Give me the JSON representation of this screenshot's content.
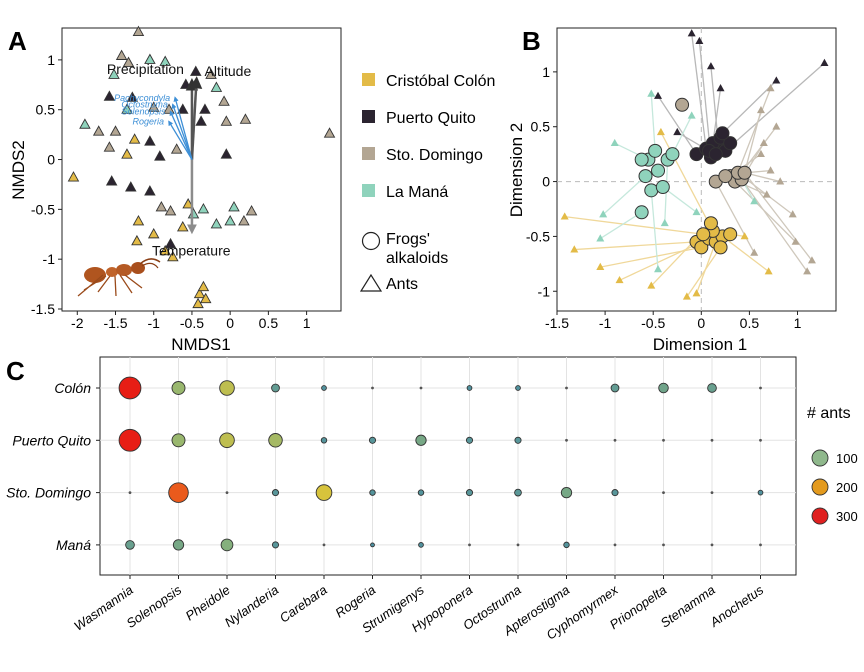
{
  "colors": {
    "colon": "#e3bb47",
    "quito": "#2b2430",
    "domingo": "#b3a693",
    "mana": "#8fd3bc",
    "arrow_grey": "#8c8c8c",
    "arrow_blue": "#3d8fd6"
  },
  "panels": {
    "a": "A",
    "b": "B",
    "c": "C"
  },
  "legend_ab": {
    "items": [
      {
        "label": "Cristóbal Colón",
        "color": "colon"
      },
      {
        "label": "Puerto Quito",
        "color": "quito"
      },
      {
        "label": "Sto. Domingo",
        "color": "domingo"
      },
      {
        "label": "La Maná",
        "color": "mana"
      }
    ],
    "frogs": [
      "Frogs'",
      "alkaloids"
    ],
    "ants": "Ants"
  },
  "legend_c": {
    "title": "# ants",
    "items": [
      {
        "label": "100",
        "value": 100
      },
      {
        "label": "200",
        "value": 200
      },
      {
        "label": "300",
        "value": 300
      }
    ]
  },
  "chart_data": [
    {
      "type": "scatter",
      "panel": "A",
      "xlabel": "NMDS1",
      "ylabel": "NMDS2",
      "xlim": [
        -2.2,
        1.45
      ],
      "ylim": [
        -1.52,
        1.32
      ],
      "xticks": [
        {
          "v": -2,
          "label": "-2"
        },
        {
          "v": -1.5,
          "label": "-1.5"
        },
        {
          "v": -1,
          "label": "-1"
        },
        {
          "v": -0.5,
          "label": "-0.5"
        },
        {
          "v": 0,
          "label": "0"
        },
        {
          "v": 0.5,
          "label": "0.5"
        },
        {
          "v": 1,
          "label": "1"
        }
      ],
      "yticks": [
        {
          "v": 1,
          "label": "1"
        },
        {
          "v": 0.5,
          "label": "0.5"
        },
        {
          "v": 0,
          "label": "0"
        },
        {
          "v": -0.5,
          "label": "-0.5"
        },
        {
          "v": -1,
          "label": "-1"
        },
        {
          "v": -1.5,
          "label": "-1.5"
        }
      ],
      "vectors": [
        {
          "label": "Precipitation",
          "x": -0.5,
          "y": 0.78,
          "color": "arrow_grey",
          "label_pos": "left"
        },
        {
          "label": "Altitude",
          "x": -0.44,
          "y": 0.8,
          "color": "arrow_grey",
          "label_pos": "right"
        },
        {
          "label": "Temperature",
          "x": -0.5,
          "y": -0.72,
          "color": "arrow_grey",
          "label_pos": "right"
        },
        {
          "label": "Pachycondyla",
          "x": -0.72,
          "y": 0.62,
          "color": "arrow_blue",
          "label_pos": "left"
        },
        {
          "label": "Octostruma",
          "x": -0.75,
          "y": 0.55,
          "color": "arrow_blue",
          "label_pos": "left"
        },
        {
          "label": "Solenopsis",
          "x": -0.78,
          "y": 0.48,
          "color": "arrow_blue",
          "label_pos": "left"
        },
        {
          "label": "Rogeria",
          "x": -0.8,
          "y": 0.38,
          "color": "arrow_blue",
          "label_pos": "left"
        }
      ],
      "vector_origin": {
        "x": -0.5,
        "y": 0
      },
      "points": [
        {
          "x": -1.2,
          "y": 1.28,
          "site": "domingo"
        },
        {
          "x": -1.42,
          "y": 1.04,
          "site": "domingo"
        },
        {
          "x": -1.33,
          "y": 0.97,
          "site": "domingo"
        },
        {
          "x": -1.52,
          "y": 0.85,
          "site": "mana"
        },
        {
          "x": -1.05,
          "y": 1.0,
          "site": "mana"
        },
        {
          "x": -0.85,
          "y": 0.98,
          "site": "mana"
        },
        {
          "x": -1.58,
          "y": 0.63,
          "site": "quito"
        },
        {
          "x": -1.28,
          "y": 0.62,
          "site": "quito"
        },
        {
          "x": -1.35,
          "y": 0.5,
          "site": "mana"
        },
        {
          "x": -1.0,
          "y": 0.52,
          "site": "domingo"
        },
        {
          "x": -0.8,
          "y": 0.5,
          "site": "domingo"
        },
        {
          "x": -0.62,
          "y": 0.5,
          "site": "quito"
        },
        {
          "x": -0.58,
          "y": 0.75,
          "site": "quito"
        },
        {
          "x": -0.45,
          "y": 0.88,
          "site": "quito"
        },
        {
          "x": -0.33,
          "y": 0.5,
          "site": "quito"
        },
        {
          "x": -0.18,
          "y": 0.72,
          "site": "mana"
        },
        {
          "x": -0.08,
          "y": 0.58,
          "site": "domingo"
        },
        {
          "x": -0.25,
          "y": 0.85,
          "site": "domingo"
        },
        {
          "x": -0.38,
          "y": 0.38,
          "site": "quito"
        },
        {
          "x": -0.05,
          "y": 0.38,
          "site": "domingo"
        },
        {
          "x": 0.2,
          "y": 0.4,
          "site": "domingo"
        },
        {
          "x": -1.9,
          "y": 0.35,
          "site": "mana"
        },
        {
          "x": -1.72,
          "y": 0.28,
          "site": "domingo"
        },
        {
          "x": -1.5,
          "y": 0.28,
          "site": "domingo"
        },
        {
          "x": -1.25,
          "y": 0.2,
          "site": "colon"
        },
        {
          "x": -1.35,
          "y": 0.05,
          "site": "colon"
        },
        {
          "x": -1.58,
          "y": 0.12,
          "site": "domingo"
        },
        {
          "x": -1.05,
          "y": 0.18,
          "site": "quito"
        },
        {
          "x": -0.92,
          "y": 0.03,
          "site": "quito"
        },
        {
          "x": -0.7,
          "y": 0.1,
          "site": "domingo"
        },
        {
          "x": -0.05,
          "y": 0.05,
          "site": "quito"
        },
        {
          "x": -2.05,
          "y": -0.18,
          "site": "colon"
        },
        {
          "x": -1.55,
          "y": -0.22,
          "site": "quito"
        },
        {
          "x": -1.3,
          "y": -0.28,
          "site": "quito"
        },
        {
          "x": -1.05,
          "y": -0.32,
          "site": "quito"
        },
        {
          "x": -0.9,
          "y": -0.48,
          "site": "domingo"
        },
        {
          "x": -0.78,
          "y": -0.52,
          "site": "domingo"
        },
        {
          "x": -0.55,
          "y": -0.45,
          "site": "colon"
        },
        {
          "x": -0.48,
          "y": -0.55,
          "site": "mana"
        },
        {
          "x": -0.35,
          "y": -0.5,
          "site": "mana"
        },
        {
          "x": -0.62,
          "y": -0.68,
          "site": "colon"
        },
        {
          "x": -1.2,
          "y": -0.62,
          "site": "colon"
        },
        {
          "x": -1.22,
          "y": -0.82,
          "site": "colon"
        },
        {
          "x": -1.0,
          "y": -0.75,
          "site": "colon"
        },
        {
          "x": -0.85,
          "y": -0.92,
          "site": "colon"
        },
        {
          "x": -0.75,
          "y": -0.98,
          "site": "colon"
        },
        {
          "x": -0.78,
          "y": -0.85,
          "site": "quito"
        },
        {
          "x": -0.18,
          "y": -0.65,
          "site": "mana"
        },
        {
          "x": 0.05,
          "y": -0.48,
          "site": "mana"
        },
        {
          "x": 0.0,
          "y": -0.62,
          "site": "mana"
        },
        {
          "x": 0.28,
          "y": -0.52,
          "site": "domingo"
        },
        {
          "x": 0.18,
          "y": -0.62,
          "site": "domingo"
        },
        {
          "x": 1.3,
          "y": 0.26,
          "site": "domingo"
        },
        {
          "x": -0.4,
          "y": -1.35,
          "site": "colon"
        },
        {
          "x": -0.35,
          "y": -1.28,
          "site": "colon"
        },
        {
          "x": -0.32,
          "y": -1.4,
          "site": "colon"
        },
        {
          "x": -0.42,
          "y": -1.45,
          "site": "colon"
        }
      ]
    },
    {
      "type": "scatter",
      "panel": "B",
      "xlabel": "Dimension 1",
      "ylabel": "Dimension 2",
      "xlim": [
        -1.5,
        1.4
      ],
      "ylim": [
        -1.18,
        1.4
      ],
      "xticks": [
        {
          "v": -1.5,
          "label": "-1.5"
        },
        {
          "v": -1,
          "label": "-1"
        },
        {
          "v": -0.5,
          "label": "-0.5"
        },
        {
          "v": 0,
          "label": "0"
        },
        {
          "v": 0.5,
          "label": "0.5"
        },
        {
          "v": 1,
          "label": "1"
        }
      ],
      "yticks": [
        {
          "v": 1,
          "label": "1"
        },
        {
          "v": 0.5,
          "label": "0.5"
        },
        {
          "v": 0,
          "label": "0"
        },
        {
          "v": -0.5,
          "label": "-0.5"
        },
        {
          "v": -1,
          "label": "-1"
        }
      ],
      "frogs": [
        {
          "x": -0.05,
          "y": 0.25,
          "site": "quito"
        },
        {
          "x": 0.05,
          "y": 0.3,
          "site": "quito"
        },
        {
          "x": 0.1,
          "y": 0.22,
          "site": "quito"
        },
        {
          "x": 0.18,
          "y": 0.32,
          "site": "quito"
        },
        {
          "x": 0.25,
          "y": 0.28,
          "site": "quito"
        },
        {
          "x": 0.12,
          "y": 0.35,
          "site": "quito"
        },
        {
          "x": 0.2,
          "y": 0.4,
          "site": "quito"
        },
        {
          "x": 0.3,
          "y": 0.35,
          "site": "quito"
        },
        {
          "x": 0.08,
          "y": 0.28,
          "site": "quito"
        },
        {
          "x": 0.22,
          "y": 0.44,
          "site": "quito"
        },
        {
          "x": 0.15,
          "y": 0.25,
          "site": "quito"
        },
        {
          "x": -0.55,
          "y": 0.2,
          "site": "mana"
        },
        {
          "x": -0.58,
          "y": 0.05,
          "site": "mana"
        },
        {
          "x": -0.52,
          "y": -0.08,
          "site": "mana"
        },
        {
          "x": -0.4,
          "y": -0.05,
          "site": "mana"
        },
        {
          "x": -0.35,
          "y": 0.2,
          "site": "mana"
        },
        {
          "x": -0.45,
          "y": 0.1,
          "site": "mana"
        },
        {
          "x": -0.62,
          "y": 0.2,
          "site": "mana"
        },
        {
          "x": -0.3,
          "y": 0.25,
          "site": "mana"
        },
        {
          "x": -0.62,
          "y": -0.28,
          "site": "mana"
        },
        {
          "x": -0.48,
          "y": 0.28,
          "site": "mana"
        },
        {
          "x": 0.3,
          "y": 0.05,
          "site": "domingo"
        },
        {
          "x": 0.35,
          "y": 0.0,
          "site": "domingo"
        },
        {
          "x": 0.42,
          "y": 0.02,
          "site": "domingo"
        },
        {
          "x": 0.38,
          "y": 0.08,
          "site": "domingo"
        },
        {
          "x": 0.45,
          "y": 0.08,
          "site": "domingo"
        },
        {
          "x": 0.15,
          "y": 0.0,
          "site": "domingo"
        },
        {
          "x": 0.25,
          "y": 0.05,
          "site": "domingo"
        },
        {
          "x": -0.2,
          "y": 0.7,
          "site": "domingo"
        },
        {
          "x": -0.05,
          "y": -0.55,
          "site": "colon"
        },
        {
          "x": 0.0,
          "y": -0.6,
          "site": "colon"
        },
        {
          "x": 0.08,
          "y": -0.52,
          "site": "colon"
        },
        {
          "x": 0.15,
          "y": -0.55,
          "site": "colon"
        },
        {
          "x": 0.22,
          "y": -0.5,
          "site": "colon"
        },
        {
          "x": 0.12,
          "y": -0.45,
          "site": "colon"
        },
        {
          "x": 0.3,
          "y": -0.48,
          "site": "colon"
        },
        {
          "x": 0.1,
          "y": -0.38,
          "site": "colon"
        },
        {
          "x": 0.02,
          "y": -0.48,
          "site": "colon"
        },
        {
          "x": 0.2,
          "y": -0.6,
          "site": "colon"
        }
      ],
      "ants": [
        {
          "x": -0.1,
          "y": 1.35,
          "site": "quito",
          "fx": 0.05,
          "fy": 0.3
        },
        {
          "x": -0.02,
          "y": 1.28,
          "site": "quito",
          "fx": 0.1,
          "fy": 0.22
        },
        {
          "x": 0.1,
          "y": 1.05,
          "site": "quito",
          "fx": 0.18,
          "fy": 0.32
        },
        {
          "x": 1.28,
          "y": 1.08,
          "site": "quito",
          "fx": 0.25,
          "fy": 0.28
        },
        {
          "x": 0.78,
          "y": 0.92,
          "site": "quito",
          "fx": 0.22,
          "fy": 0.44
        },
        {
          "x": -0.45,
          "y": 0.78,
          "site": "quito",
          "fx": -0.05,
          "fy": 0.25
        },
        {
          "x": 0.2,
          "y": 0.85,
          "site": "quito",
          "fx": 0.12,
          "fy": 0.35
        },
        {
          "x": -0.25,
          "y": 0.45,
          "site": "quito",
          "fx": 0.08,
          "fy": 0.28
        },
        {
          "x": 0.72,
          "y": 0.85,
          "site": "domingo",
          "fx": 0.38,
          "fy": 0.08
        },
        {
          "x": 0.62,
          "y": 0.65,
          "site": "domingo",
          "fx": 0.45,
          "fy": 0.08
        },
        {
          "x": 0.78,
          "y": 0.5,
          "site": "domingo",
          "fx": 0.35,
          "fy": 0.0
        },
        {
          "x": 0.65,
          "y": 0.35,
          "site": "domingo",
          "fx": 0.42,
          "fy": 0.02
        },
        {
          "x": 0.62,
          "y": 0.25,
          "site": "domingo",
          "fx": 0.3,
          "fy": 0.05
        },
        {
          "x": 0.72,
          "y": 0.1,
          "site": "domingo",
          "fx": 0.45,
          "fy": 0.08
        },
        {
          "x": 0.68,
          "y": -0.12,
          "site": "domingo",
          "fx": 0.25,
          "fy": 0.05
        },
        {
          "x": 0.95,
          "y": -0.3,
          "site": "domingo",
          "fx": 0.38,
          "fy": 0.08
        },
        {
          "x": 0.98,
          "y": -0.55,
          "site": "domingo",
          "fx": 0.35,
          "fy": 0.0
        },
        {
          "x": 1.1,
          "y": -0.82,
          "site": "domingo",
          "fx": 0.42,
          "fy": 0.02
        },
        {
          "x": 1.15,
          "y": -0.72,
          "site": "domingo",
          "fx": 0.45,
          "fy": 0.08
        },
        {
          "x": 0.55,
          "y": -0.65,
          "site": "domingo",
          "fx": 0.15,
          "fy": 0.0
        },
        {
          "x": 0.82,
          "y": 0.0,
          "site": "domingo",
          "fx": 0.45,
          "fy": 0.08
        },
        {
          "x": -1.42,
          "y": -0.32,
          "site": "colon",
          "fx": 0.02,
          "fy": -0.48
        },
        {
          "x": -1.32,
          "y": -0.62,
          "site": "colon",
          "fx": -0.05,
          "fy": -0.55
        },
        {
          "x": -1.05,
          "y": -0.78,
          "site": "colon",
          "fx": 0.0,
          "fy": -0.6
        },
        {
          "x": -0.85,
          "y": -0.9,
          "site": "colon",
          "fx": 0.08,
          "fy": -0.52
        },
        {
          "x": -0.52,
          "y": -0.95,
          "site": "colon",
          "fx": 0.1,
          "fy": -0.38
        },
        {
          "x": -0.15,
          "y": -1.05,
          "site": "colon",
          "fx": 0.2,
          "fy": -0.6
        },
        {
          "x": -0.05,
          "y": -1.02,
          "site": "colon",
          "fx": 0.15,
          "fy": -0.55
        },
        {
          "x": 0.45,
          "y": -0.5,
          "site": "colon",
          "fx": 0.3,
          "fy": -0.48
        },
        {
          "x": 0.7,
          "y": -0.82,
          "site": "colon",
          "fx": 0.22,
          "fy": -0.5
        },
        {
          "x": -0.42,
          "y": 0.45,
          "site": "colon",
          "fx": 0.12,
          "fy": -0.45
        },
        {
          "x": -0.9,
          "y": 0.35,
          "site": "mana",
          "fx": -0.55,
          "fy": 0.2
        },
        {
          "x": -1.02,
          "y": -0.3,
          "site": "mana",
          "fx": -0.58,
          "fy": 0.05
        },
        {
          "x": -1.05,
          "y": -0.52,
          "site": "mana",
          "fx": -0.62,
          "fy": -0.28
        },
        {
          "x": -0.52,
          "y": 0.8,
          "site": "mana",
          "fx": -0.48,
          "fy": 0.28
        },
        {
          "x": -0.1,
          "y": 0.6,
          "site": "mana",
          "fx": -0.3,
          "fy": 0.25
        },
        {
          "x": -0.45,
          "y": -0.8,
          "site": "mana",
          "fx": -0.52,
          "fy": -0.08
        },
        {
          "x": -0.05,
          "y": -0.28,
          "site": "mana",
          "fx": -0.4,
          "fy": -0.05
        },
        {
          "x": 0.55,
          "y": -0.18,
          "site": "mana",
          "fx": 0.38,
          "fy": 0.08
        },
        {
          "x": -0.38,
          "y": -0.38,
          "site": "mana",
          "fx": -0.35,
          "fy": 0.2
        }
      ]
    },
    {
      "type": "scatter",
      "panel": "C",
      "rows": [
        "Colón",
        "Puerto Quito",
        "Sto. Domingo",
        "Maná"
      ],
      "cols": [
        "Wasmannia",
        "Solenopsis",
        "Pheidole",
        "Nylanderia",
        "Carebara",
        "Rogeria",
        "Strumigenys",
        "Hypoponera",
        "Octostruma",
        "Apterostigma",
        "Cyphomyrmex",
        "Prionopelta",
        "Stenamma",
        "Anochetus"
      ],
      "values": [
        [
          310,
          110,
          140,
          40,
          15,
          5,
          5,
          15,
          15,
          5,
          40,
          60,
          50,
          5
        ],
        [
          310,
          110,
          140,
          120,
          20,
          25,
          70,
          25,
          25,
          5,
          5,
          5,
          5,
          5
        ],
        [
          5,
          250,
          5,
          25,
          160,
          20,
          20,
          25,
          30,
          70,
          25,
          5,
          5,
          15
        ],
        [
          50,
          70,
          90,
          25,
          5,
          10,
          15,
          5,
          5,
          20,
          5,
          5,
          5,
          5
        ]
      ]
    }
  ]
}
